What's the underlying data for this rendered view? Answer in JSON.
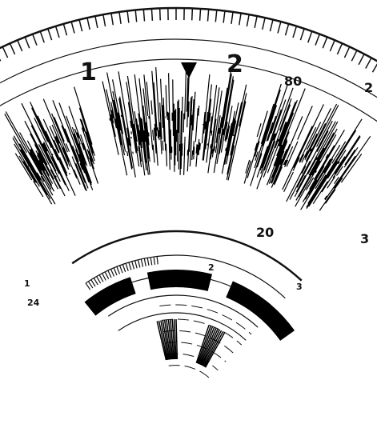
{
  "labels": [
    "1",
    "2",
    "80",
    "2",
    "20",
    "3",
    "2",
    "3",
    "1",
    "24"
  ]
}
